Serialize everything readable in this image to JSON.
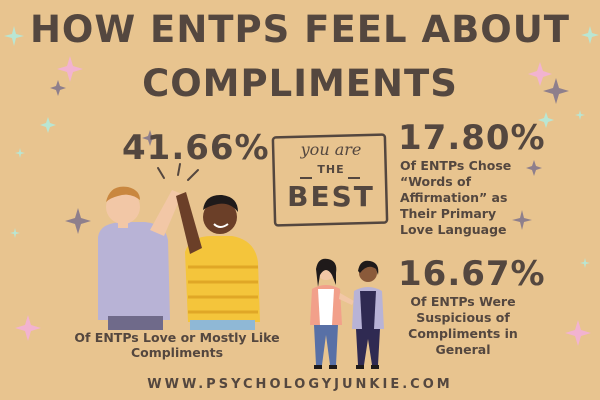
{
  "title": {
    "line1": "HOW ENTPS FEEL ABOUT",
    "line2": "COMPLIMENTS"
  },
  "stats": [
    {
      "percent": "41.66%",
      "text": "Of ENTPs Love or Mostly Like Compliments"
    },
    {
      "percent": "17.80%",
      "text_lines": [
        "Of ENTPs Chose",
        "“Words of",
        "Affirmation” as",
        "Their Primary",
        "Love Language"
      ]
    },
    {
      "percent": "16.67%",
      "text_lines": [
        "Of ENTPs Were",
        "Suspicious of",
        "Compliments in",
        "General"
      ]
    }
  ],
  "sign": {
    "line1": "you are",
    "line2": "THE",
    "line3": "BEST"
  },
  "footer": "WWW.PSYCHOLOGYJUNKIE.COM",
  "colors": {
    "background": "#e8c48f",
    "text": "#54473f",
    "sparkle_pink": "#f2b3d0",
    "sparkle_mint": "#b9e6d3"
  }
}
